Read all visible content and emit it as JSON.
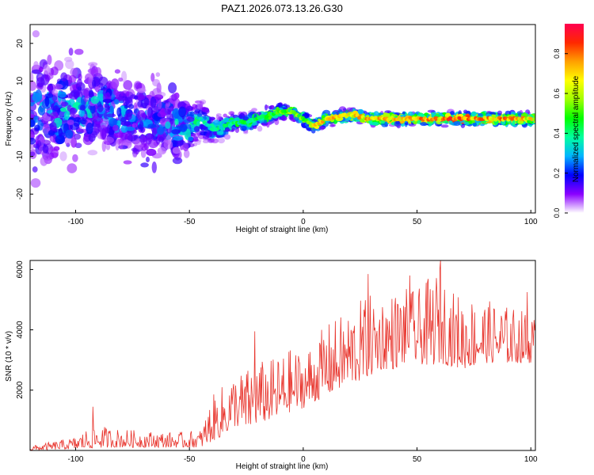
{
  "title": "PAZ1.2026.073.13.26.G30",
  "colors": {
    "snr_line": "#e8342c",
    "colormap": [
      "#ffffff",
      "#8a00ff",
      "#0000ff",
      "#00b4ff",
      "#00ffa0",
      "#00ff00",
      "#a0ff00",
      "#ffff00",
      "#ffa000",
      "#ff2800",
      "#ff0050"
    ]
  },
  "chart_data": [
    {
      "type": "heatmap",
      "title": "",
      "xlabel": "Height of straight line (km)",
      "ylabel": "Frequency (Hz)",
      "xlim": [
        -120,
        102
      ],
      "ylim": [
        -25,
        25
      ],
      "xticks": [
        -100,
        -50,
        0,
        50,
        100
      ],
      "yticks": [
        -20,
        -10,
        0,
        10,
        20
      ],
      "colorbar": {
        "label": "Normalized spectral amplitude",
        "range": [
          0,
          0.95
        ],
        "ticks": [
          "0.0",
          "0.2",
          "0.4",
          "0.6",
          "0.8"
        ],
        "tick_values": [
          0,
          0.2,
          0.4,
          0.6,
          0.8
        ]
      },
      "ridge": {
        "x": [
          -120,
          -105,
          -90,
          -75,
          -60,
          -50,
          -45,
          -40,
          -35,
          -30,
          -25,
          -20,
          -15,
          -10,
          -5,
          0,
          5,
          10,
          20,
          30,
          40,
          50,
          60,
          70,
          80,
          90,
          100
        ],
        "freq": [
          1,
          2,
          3,
          0,
          -1,
          -2,
          0,
          -3,
          -2,
          -1,
          -1,
          0,
          1,
          2,
          2,
          0,
          -2,
          0,
          1,
          0,
          0,
          0,
          0,
          0,
          0,
          0,
          0
        ],
        "amplitude": [
          0.3,
          0.35,
          0.35,
          0.3,
          0.3,
          0.4,
          0.4,
          0.45,
          0.45,
          0.5,
          0.5,
          0.5,
          0.55,
          0.6,
          0.6,
          0.6,
          0.75,
          0.8,
          0.8,
          0.85,
          0.85,
          0.85,
          0.9,
          0.9,
          0.9,
          0.85,
          0.8
        ],
        "spread_hz": [
          14,
          12,
          10,
          9,
          9,
          6,
          4,
          3,
          2.5,
          2,
          2,
          2,
          2,
          1.6,
          1.5,
          1.5,
          1.4,
          1.4,
          1.3,
          1.3,
          1.3,
          1.3,
          1.3,
          1.3,
          1.3,
          1.3,
          1.3
        ]
      }
    },
    {
      "type": "line",
      "title": "",
      "xlabel": "Height of straight line (km)",
      "ylabel": "SNR (10 * v/v)",
      "xlim": [
        -120,
        102
      ],
      "ylim": [
        0,
        6300
      ],
      "xticks": [
        -100,
        -50,
        0,
        50,
        100
      ],
      "yticks": [
        2000,
        4000,
        6000
      ],
      "envelope": {
        "x": [
          -120,
          -100,
          -92,
          -85,
          -70,
          -55,
          -45,
          -40,
          -35,
          -30,
          -25,
          -20,
          -15,
          -10,
          -5,
          0,
          5,
          10,
          15,
          20,
          25,
          30,
          35,
          40,
          45,
          50,
          55,
          60,
          65,
          70,
          75,
          80,
          85,
          90,
          95,
          100,
          102
        ],
        "low": [
          0,
          50,
          80,
          100,
          100,
          100,
          100,
          300,
          500,
          800,
          700,
          900,
          1000,
          1100,
          1300,
          1400,
          1600,
          1800,
          2000,
          2200,
          2300,
          2500,
          2700,
          2700,
          2900,
          2900,
          2800,
          2900,
          2800,
          2700,
          2800,
          2900,
          2900,
          2900,
          2900,
          2900,
          3000
        ],
        "high": [
          150,
          450,
          900,
          750,
          650,
          600,
          700,
          1800,
          2200,
          2600,
          2700,
          3000,
          3000,
          3200,
          3400,
          3300,
          3700,
          4200,
          4400,
          4700,
          5000,
          5200,
          5200,
          5300,
          5400,
          5300,
          5700,
          6100,
          5300,
          5200,
          5100,
          5000,
          4900,
          4800,
          4700,
          4600,
          4400
        ],
        "spikes": [
          {
            "x": -92.5,
            "y": 1450
          },
          {
            "x": -21.3,
            "y": 3950
          },
          {
            "x": 28.5,
            "y": 5850
          },
          {
            "x": 46.8,
            "y": 5800
          },
          {
            "x": 60.3,
            "y": 6300
          },
          {
            "x": 98.5,
            "y": 5250
          }
        ]
      }
    }
  ]
}
